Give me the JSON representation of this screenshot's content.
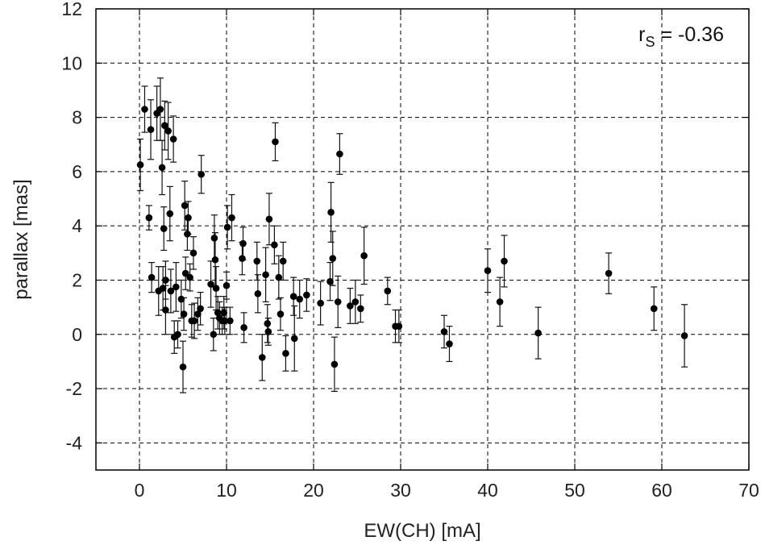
{
  "chart_data": {
    "type": "scatter",
    "title": "",
    "xlabel": "EW(CH) [mA]",
    "ylabel": "parallax [mas]",
    "xlim": [
      -5,
      70
    ],
    "ylim": [
      -5,
      12
    ],
    "xticks": [
      0,
      10,
      20,
      30,
      40,
      50,
      60,
      70
    ],
    "yticks": [
      -4,
      -2,
      0,
      2,
      4,
      6,
      8,
      10,
      12
    ],
    "xtick_labels": [
      "0",
      "10",
      "20",
      "30",
      "40",
      "50",
      "60",
      "70"
    ],
    "ytick_labels": [
      "-4",
      "-2",
      "0",
      "2",
      "4",
      "6",
      "8",
      "10",
      "12"
    ],
    "grid": true,
    "annotation": {
      "base": "r",
      "sub": "S",
      "rest": " = -0.36"
    },
    "series": [
      {
        "marker": "filled-circle",
        "color": "#000000",
        "points": [
          {
            "x": 0.1,
            "y": 6.25,
            "err": 0.95
          },
          {
            "x": 0.6,
            "y": 8.3,
            "err": 0.85
          },
          {
            "x": 1.1,
            "y": 4.3,
            "err": 0.45
          },
          {
            "x": 1.3,
            "y": 7.55,
            "err": 1.1
          },
          {
            "x": 1.4,
            "y": 2.1,
            "err": 0.55
          },
          {
            "x": 2.0,
            "y": 8.15,
            "err": 1.0
          },
          {
            "x": 2.2,
            "y": 1.6,
            "err": 0.9
          },
          {
            "x": 2.4,
            "y": 8.3,
            "err": 1.15
          },
          {
            "x": 2.6,
            "y": 6.15,
            "err": 1.0
          },
          {
            "x": 2.7,
            "y": 1.7,
            "err": 0.8
          },
          {
            "x": 2.8,
            "y": 3.9,
            "err": 0.8
          },
          {
            "x": 2.9,
            "y": 7.7,
            "err": 0.9
          },
          {
            "x": 3.0,
            "y": 0.9,
            "err": 0.9
          },
          {
            "x": 3.0,
            "y": 2.0,
            "err": 0.7
          },
          {
            "x": 3.3,
            "y": 7.5,
            "err": 1.05
          },
          {
            "x": 3.5,
            "y": 4.45,
            "err": 1.0
          },
          {
            "x": 3.6,
            "y": 1.6,
            "err": 0.8
          },
          {
            "x": 3.9,
            "y": 7.2,
            "err": 0.85
          },
          {
            "x": 4.0,
            "y": -0.1,
            "err": 0.6
          },
          {
            "x": 4.2,
            "y": 1.75,
            "err": 0.9
          },
          {
            "x": 4.4,
            "y": 0.0,
            "err": 0.5
          },
          {
            "x": 4.8,
            "y": 1.3,
            "err": 0.7
          },
          {
            "x": 5.0,
            "y": -1.2,
            "err": 0.95
          },
          {
            "x": 5.1,
            "y": 0.75,
            "err": 0.6
          },
          {
            "x": 5.2,
            "y": 4.75,
            "err": 0.9
          },
          {
            "x": 5.3,
            "y": 2.25,
            "err": 0.6
          },
          {
            "x": 5.5,
            "y": 3.7,
            "err": 0.6
          },
          {
            "x": 5.6,
            "y": 4.3,
            "err": 0.6
          },
          {
            "x": 5.8,
            "y": 2.1,
            "err": 0.5
          },
          {
            "x": 6.0,
            "y": 0.5,
            "err": 0.6
          },
          {
            "x": 6.2,
            "y": 3.0,
            "err": 0.6
          },
          {
            "x": 6.3,
            "y": 0.5,
            "err": 0.65
          },
          {
            "x": 6.7,
            "y": 0.75,
            "err": 0.6
          },
          {
            "x": 7.0,
            "y": 0.95,
            "err": 0.6
          },
          {
            "x": 7.1,
            "y": 5.9,
            "err": 0.7
          },
          {
            "x": 8.2,
            "y": 1.85,
            "err": 0.85
          },
          {
            "x": 8.5,
            "y": 0.0,
            "err": 0.6
          },
          {
            "x": 8.6,
            "y": 3.55,
            "err": 0.85
          },
          {
            "x": 8.7,
            "y": 2.75,
            "err": 1.0
          },
          {
            "x": 8.8,
            "y": 1.7,
            "err": 0.8
          },
          {
            "x": 9.0,
            "y": 0.8,
            "err": 0.6
          },
          {
            "x": 9.2,
            "y": 0.6,
            "err": 0.6
          },
          {
            "x": 9.5,
            "y": 0.5,
            "err": 0.5
          },
          {
            "x": 9.7,
            "y": 0.8,
            "err": 0.6
          },
          {
            "x": 9.8,
            "y": 0.5,
            "err": 0.5
          },
          {
            "x": 10.0,
            "y": 1.8,
            "err": 0.5
          },
          {
            "x": 10.1,
            "y": 3.95,
            "err": 0.8
          },
          {
            "x": 10.4,
            "y": 0.5,
            "err": 0.5
          },
          {
            "x": 10.6,
            "y": 4.3,
            "err": 0.85
          },
          {
            "x": 11.8,
            "y": 2.8,
            "err": 0.6
          },
          {
            "x": 11.9,
            "y": 3.35,
            "err": 0.6
          },
          {
            "x": 12.0,
            "y": 0.25,
            "err": 0.55
          },
          {
            "x": 13.5,
            "y": 2.7,
            "err": 0.7
          },
          {
            "x": 13.6,
            "y": 1.5,
            "err": 0.7
          },
          {
            "x": 14.1,
            "y": -0.85,
            "err": 0.85
          },
          {
            "x": 14.5,
            "y": 2.2,
            "err": 1.0
          },
          {
            "x": 14.7,
            "y": 0.4,
            "err": 0.7
          },
          {
            "x": 14.8,
            "y": 0.1,
            "err": 0.5
          },
          {
            "x": 14.9,
            "y": 4.25,
            "err": 0.95
          },
          {
            "x": 15.5,
            "y": 3.3,
            "err": 0.7
          },
          {
            "x": 15.6,
            "y": 7.1,
            "err": 0.7
          },
          {
            "x": 16.0,
            "y": 2.1,
            "err": 0.8
          },
          {
            "x": 16.2,
            "y": 0.75,
            "err": 0.6
          },
          {
            "x": 16.5,
            "y": 2.7,
            "err": 0.7
          },
          {
            "x": 16.8,
            "y": -0.7,
            "err": 0.65
          },
          {
            "x": 17.7,
            "y": 1.4,
            "err": 0.7
          },
          {
            "x": 17.8,
            "y": -0.15,
            "err": 1.2
          },
          {
            "x": 18.4,
            "y": 1.3,
            "err": 0.7
          },
          {
            "x": 19.2,
            "y": 1.45,
            "err": 0.6
          },
          {
            "x": 20.8,
            "y": 1.15,
            "err": 0.8
          },
          {
            "x": 21.9,
            "y": 1.95,
            "err": 0.7
          },
          {
            "x": 22.0,
            "y": 4.5,
            "err": 1.1
          },
          {
            "x": 22.2,
            "y": 2.8,
            "err": 1.0
          },
          {
            "x": 22.4,
            "y": -1.1,
            "err": 1.0
          },
          {
            "x": 22.8,
            "y": 1.2,
            "err": 0.95
          },
          {
            "x": 23.0,
            "y": 6.65,
            "err": 0.75
          },
          {
            "x": 24.2,
            "y": 1.05,
            "err": 0.65
          },
          {
            "x": 24.8,
            "y": 1.2,
            "err": 0.8
          },
          {
            "x": 25.4,
            "y": 0.95,
            "err": 0.5
          },
          {
            "x": 25.8,
            "y": 2.9,
            "err": 1.05
          },
          {
            "x": 28.5,
            "y": 1.6,
            "err": 0.5
          },
          {
            "x": 29.4,
            "y": 0.3,
            "err": 0.6
          },
          {
            "x": 29.8,
            "y": 0.3,
            "err": 0.6
          },
          {
            "x": 35.0,
            "y": 0.1,
            "err": 0.6
          },
          {
            "x": 35.6,
            "y": -0.35,
            "err": 0.65
          },
          {
            "x": 40.0,
            "y": 2.35,
            "err": 0.8
          },
          {
            "x": 41.4,
            "y": 1.2,
            "err": 0.9
          },
          {
            "x": 41.9,
            "y": 2.7,
            "err": 0.95
          },
          {
            "x": 45.8,
            "y": 0.05,
            "err": 0.95
          },
          {
            "x": 53.9,
            "y": 2.25,
            "err": 0.75
          },
          {
            "x": 59.1,
            "y": 0.95,
            "err": 0.8
          },
          {
            "x": 62.6,
            "y": -0.05,
            "err": 1.15
          }
        ]
      }
    ]
  }
}
